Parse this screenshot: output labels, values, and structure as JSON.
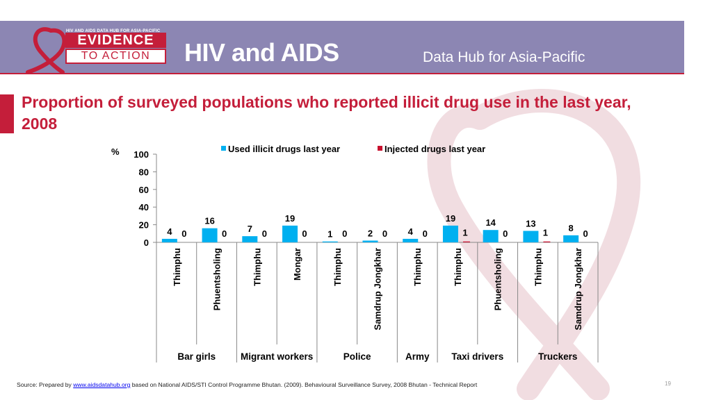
{
  "header": {
    "logo_small": "HIV AND AIDS DATA HUB FOR ASIA-PACIFIC",
    "logo_line1": "EVIDENCE",
    "logo_line2": "TO ACTION",
    "title": "HIV and AIDS",
    "subtitle": "Data Hub for Asia-Pacific"
  },
  "slide": {
    "title": "Proportion of surveyed populations who reported illicit drug use in the last year, 2008",
    "page_number": "19"
  },
  "source": {
    "prefix": "Source: Prepared by ",
    "link": "www.aidsdatahub.org",
    "suffix": " based on National AIDS/STI Control Programme Bhutan. (2009). Behavioural Surveillance Survey, 2008 Bhutan - Technical Report"
  },
  "colors": {
    "brand": "#c41e3a",
    "header_bg": "#8c86b3",
    "series1": "#00b0f0",
    "series2": "#c8102e",
    "ribbon": "#f1dde1"
  },
  "chart_data": {
    "type": "bar",
    "title": "",
    "ylabel": "%",
    "xlabel": "",
    "ylim": [
      0,
      100
    ],
    "yticks": [
      0,
      20,
      40,
      60,
      80,
      100
    ],
    "grid": false,
    "legend_position": "top",
    "categories": [
      "Thimphu",
      "Phuentsholing",
      "Thimphu",
      "Mongar",
      "Thimphu",
      "Samdrup Jongkhar",
      "Thimphu",
      "Thimphu",
      "Phuentsholing",
      "Thimphu",
      "Samdrup Jongkhar"
    ],
    "groups": [
      {
        "label": "Bar girls",
        "count": 2
      },
      {
        "label": "Migrant workers",
        "count": 2
      },
      {
        "label": "Police",
        "count": 2
      },
      {
        "label": "Army",
        "count": 1
      },
      {
        "label": "Taxi drivers",
        "count": 2
      },
      {
        "label": "Truckers",
        "count": 2
      }
    ],
    "series": [
      {
        "name": "Used illicit drugs last year",
        "values": [
          4,
          16,
          7,
          19,
          1,
          2,
          4,
          19,
          14,
          13,
          8
        ]
      },
      {
        "name": "Injected drugs last year",
        "values": [
          0,
          0,
          0,
          0,
          0,
          0,
          0,
          1,
          0,
          1,
          0
        ]
      }
    ]
  }
}
